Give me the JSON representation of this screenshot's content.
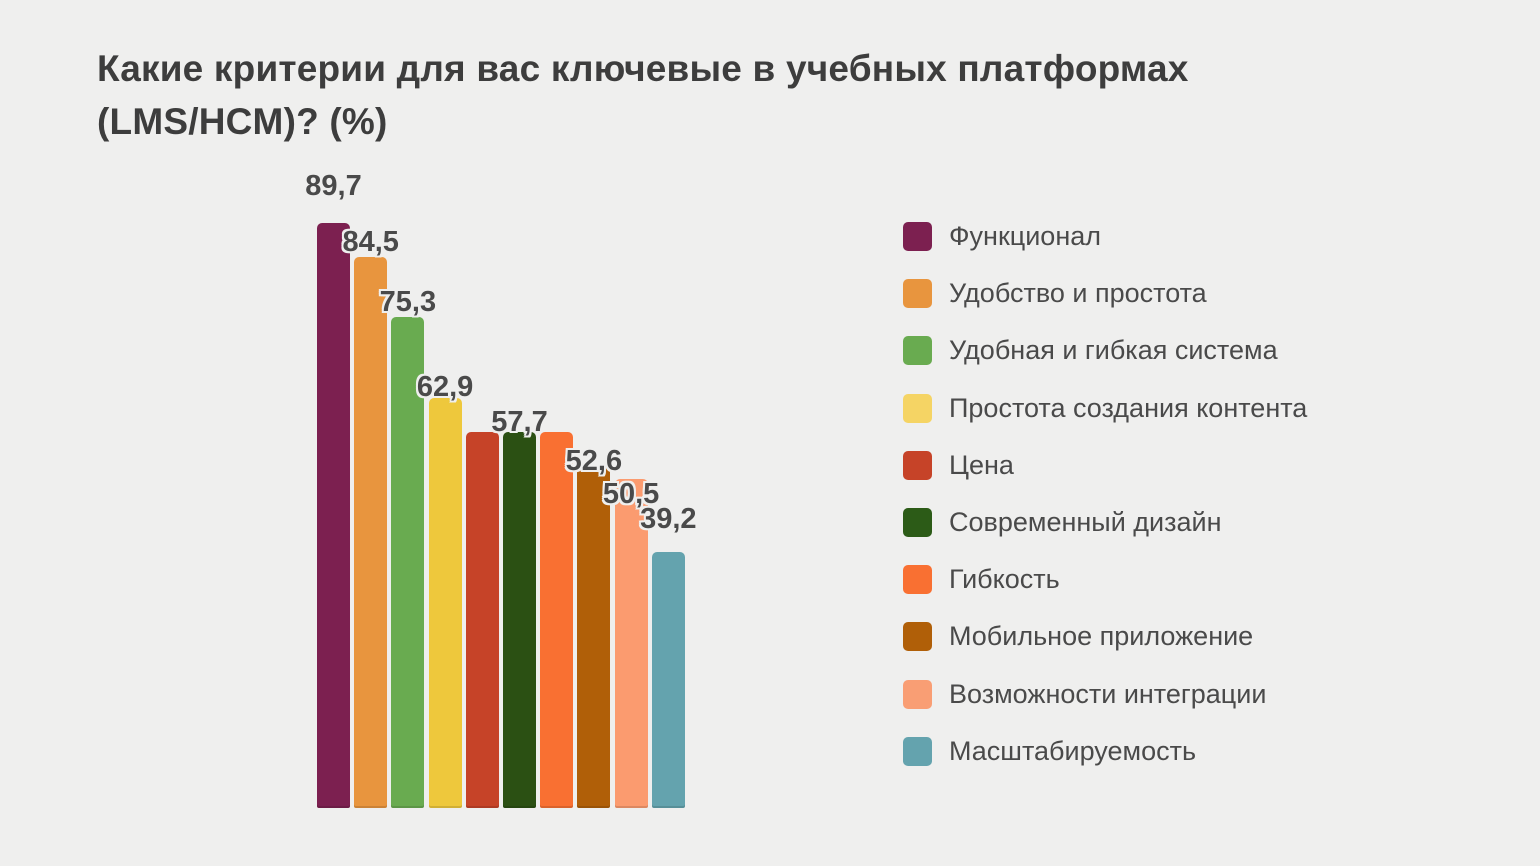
{
  "header": {
    "title_lines": [
      "Какие критерии для вас ключевые в учебных платформах",
      "(LMS/HCM)? (%)"
    ]
  },
  "chart_data": {
    "type": "bar",
    "title": "Какие критерии для вас ключевые в учебных платформах (LMS/HCM)? (%)",
    "unit": "%",
    "categories": [
      "Функционал",
      "Удобство и простота",
      "Удобная и гибкая система",
      "Простота создания контента",
      "Цена",
      "Современный дизайн",
      "Гибкость",
      "Мобильное приложение",
      "Возможности интеграции",
      "Масштабируемость"
    ],
    "values": [
      89.7,
      84.5,
      75.3,
      62.9,
      57.7,
      57.7,
      57.7,
      52.6,
      50.5,
      39.2
    ],
    "data_labels": [
      "89,7",
      "84,5",
      "75,3",
      "62,9",
      "",
      "57,7",
      "",
      "52,6",
      "50,5",
      "39,2"
    ],
    "bar_colors": [
      "#7C2050",
      "#E8953E",
      "#69AB50",
      "#EEC83C",
      "#C64328",
      "#2B5013",
      "#F97032",
      "#B05F08",
      "#FB9B6F",
      "#64A3AE"
    ],
    "ylim": [
      0,
      100
    ],
    "grid": false,
    "axes_visible": false,
    "legend_position": "right"
  },
  "legend": {
    "items": [
      {
        "label": "Функционал",
        "color": "#7C2050"
      },
      {
        "label": "Удобство и простота",
        "color": "#E8953E"
      },
      {
        "label": "Удобная и гибкая система",
        "color": "#69AB50"
      },
      {
        "label": "Простота создания контента",
        "color": "#F5D464"
      },
      {
        "label": "Цена",
        "color": "#C64328"
      },
      {
        "label": "Современный дизайн",
        "color": "#2C5B17"
      },
      {
        "label": "Гибкость",
        "color": "#F97032"
      },
      {
        "label": "Мобильное приложение",
        "color": "#B05F08"
      },
      {
        "label": "Возможности интеграции",
        "color": "#F99E74"
      },
      {
        "label": "Масштабируемость",
        "color": "#64A3AE"
      }
    ]
  },
  "colors": {
    "background": "#EFEFEE",
    "title_text": "#3D3D3D",
    "value_label_text": "#4A4A4A",
    "legend_text": "#4A4A4A"
  }
}
